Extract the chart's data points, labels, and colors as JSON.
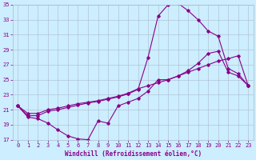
{
  "xlabel": "Windchill (Refroidissement éolien,°C)",
  "background_color": "#cceeff",
  "line_color": "#880088",
  "grid_color": "#aabbcc",
  "xlim": [
    -0.5,
    23.5
  ],
  "ylim": [
    17,
    35
  ],
  "yticks": [
    17,
    19,
    21,
    23,
    25,
    27,
    29,
    31,
    33,
    35
  ],
  "xticks": [
    0,
    1,
    2,
    3,
    4,
    5,
    6,
    7,
    8,
    9,
    10,
    11,
    12,
    13,
    14,
    15,
    16,
    17,
    18,
    19,
    20,
    21,
    22,
    23
  ],
  "line1_x": [
    0,
    1,
    2,
    3,
    4,
    5,
    6,
    7,
    8,
    9,
    10,
    11,
    12,
    13,
    14,
    15,
    16,
    17,
    18,
    19,
    20,
    21,
    22,
    23
  ],
  "line1_y": [
    21.5,
    20.0,
    19.8,
    19.2,
    18.3,
    17.5,
    17.1,
    17.0,
    19.5,
    19.2,
    21.5,
    22.0,
    22.5,
    23.5,
    25.0,
    25.0,
    25.5,
    26.2,
    27.2,
    28.5,
    28.8,
    26.0,
    25.5,
    24.2
  ],
  "line2_x": [
    0,
    1,
    2,
    3,
    4,
    5,
    6,
    7,
    8,
    9,
    10,
    11,
    12,
    13,
    14,
    15,
    16,
    17,
    18,
    19,
    20,
    21,
    22,
    23
  ],
  "line2_y": [
    21.5,
    20.5,
    20.5,
    21.0,
    21.2,
    21.5,
    21.8,
    22.0,
    22.2,
    22.5,
    22.8,
    23.2,
    23.8,
    24.2,
    24.6,
    25.0,
    25.5,
    26.0,
    26.5,
    27.0,
    27.5,
    27.8,
    28.2,
    24.2
  ],
  "line3_x": [
    0,
    1,
    2,
    3,
    4,
    5,
    6,
    7,
    8,
    9,
    10,
    11,
    12,
    13,
    14,
    15,
    16,
    17,
    18,
    19,
    20,
    21,
    22,
    23
  ],
  "line3_y": [
    21.5,
    20.2,
    20.2,
    20.8,
    21.0,
    21.3,
    21.6,
    21.9,
    22.1,
    22.4,
    22.7,
    23.1,
    23.7,
    28.0,
    33.5,
    35.0,
    35.2,
    34.2,
    33.0,
    31.5,
    30.8,
    26.5,
    25.8,
    24.2
  ]
}
